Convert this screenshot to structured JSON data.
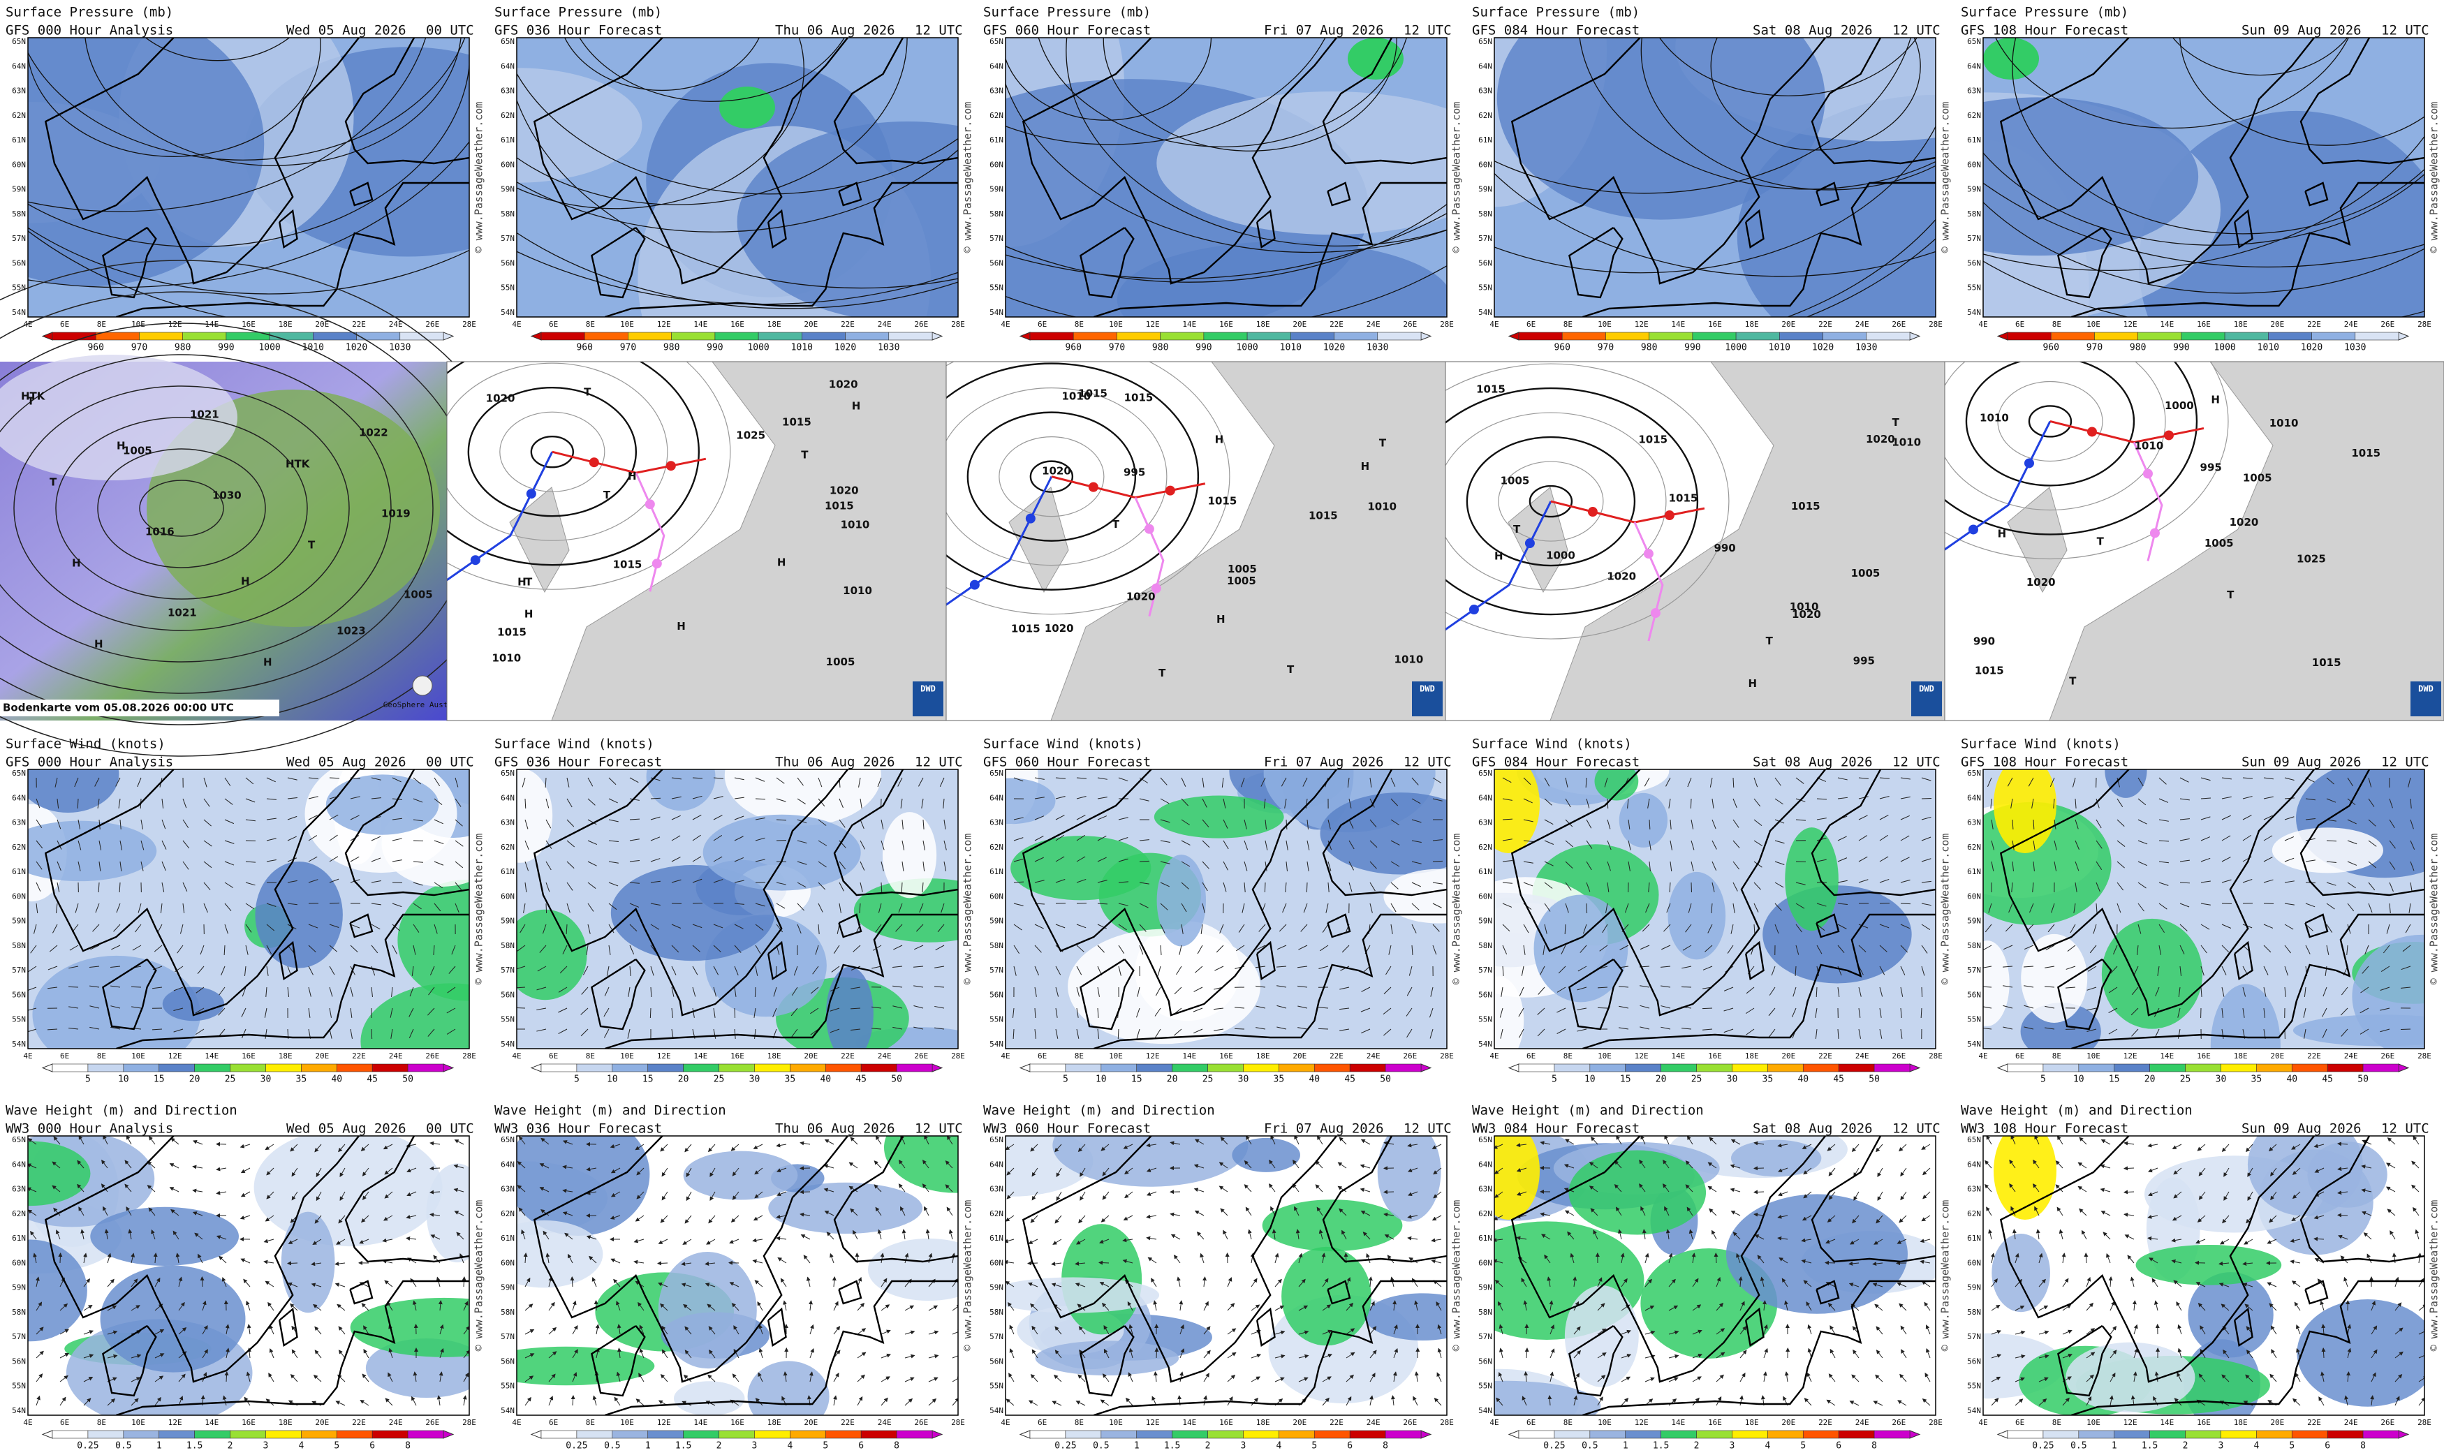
{
  "watermark": "© www.PassageWeather.com",
  "lat_labels": [
    "65N",
    "64N",
    "63N",
    "62N",
    "61N",
    "60N",
    "59N",
    "58N",
    "57N",
    "56N",
    "55N",
    "54N"
  ],
  "lon_labels": [
    "4E",
    "6E",
    "8E",
    "10E",
    "12E",
    "14E",
    "16E",
    "18E",
    "20E",
    "22E",
    "24E",
    "26E",
    "28E"
  ],
  "pressure_maps": {
    "title": "Surface Pressure (mb)",
    "panels": [
      {
        "model": "GFS 000 Hour Analysis",
        "date": "Wed 05 Aug 2026",
        "time": "00 UTC"
      },
      {
        "model": "GFS 036 Hour Forecast",
        "date": "Thu 06 Aug 2026",
        "time": "12 UTC"
      },
      {
        "model": "GFS 060 Hour Forecast",
        "date": "Fri 07 Aug 2026",
        "time": "12 UTC"
      },
      {
        "model": "GFS 084 Hour Forecast",
        "date": "Sat 08 Aug 2026",
        "time": "12 UTC"
      },
      {
        "model": "GFS 108 Hour Forecast",
        "date": "Sun 09 Aug 2026",
        "time": "12 UTC"
      }
    ],
    "colorbar": [
      "960",
      "970",
      "980",
      "990",
      "1000",
      "1010",
      "1020",
      "1030"
    ]
  },
  "analysis_maps": {
    "caption": "Bodenkarte vom 05.08.2026 00:00 UTC",
    "provider": "GeoSphere Austria",
    "dwd_logo": "DWD",
    "satellite_labels": [
      "HTK",
      "H",
      "1030",
      "T",
      "1005",
      "H",
      "1021",
      "HTK",
      "1019",
      "H",
      "1021",
      "H",
      "1022",
      "T",
      "1016",
      "H",
      "1023",
      "T",
      "1005"
    ],
    "panels": [
      {
        "labels": [
          "H",
          "1010",
          "T",
          "1015",
          "1015",
          "T",
          "1010",
          "H",
          "1020",
          "T",
          "1015",
          "H",
          "1025",
          "1020",
          "H",
          "T",
          "1010",
          "1005",
          "1015",
          "H",
          "1020",
          "H"
        ]
      },
      {
        "labels": [
          "1015",
          "1010",
          "T",
          "995",
          "1005",
          "T",
          "1010",
          "1015",
          "H",
          "1020",
          "T",
          "1015",
          "1020",
          "H",
          "1005",
          "1010",
          "1015",
          "H",
          "1020",
          "T",
          "1015"
        ]
      },
      {
        "labels": [
          "1015",
          "T",
          "1010",
          "1020",
          "T",
          "990",
          "995",
          "1000",
          "1005",
          "1015",
          "1020",
          "H",
          "1015",
          "1010",
          "H",
          "T",
          "1005",
          "1020",
          "1015"
        ]
      },
      {
        "labels": [
          "T",
          "990",
          "995",
          "1000",
          "1005",
          "1010",
          "1015",
          "T",
          "1020",
          "H",
          "1025",
          "1015",
          "T",
          "1010",
          "1005",
          "1020",
          "1010",
          "H",
          "1015"
        ]
      }
    ]
  },
  "wind_maps": {
    "title": "Surface Wind (knots)",
    "panels": [
      {
        "model": "GFS 000 Hour Analysis",
        "date": "Wed 05 Aug 2026",
        "time": "00 UTC"
      },
      {
        "model": "GFS 036 Hour Forecast",
        "date": "Thu 06 Aug 2026",
        "time": "12 UTC"
      },
      {
        "model": "GFS 060 Hour Forecast",
        "date": "Fri 07 Aug 2026",
        "time": "12 UTC"
      },
      {
        "model": "GFS 084 Hour Forecast",
        "date": "Sat 08 Aug 2026",
        "time": "12 UTC"
      },
      {
        "model": "GFS 108 Hour Forecast",
        "date": "Sun 09 Aug 2026",
        "time": "12 UTC"
      }
    ],
    "colorbar": [
      "5",
      "10",
      "15",
      "20",
      "25",
      "30",
      "35",
      "40",
      "45",
      "50"
    ]
  },
  "wave_maps": {
    "title": "Wave Height (m) and Direction",
    "panels": [
      {
        "model": "WW3 000 Hour Analysis",
        "date": "Wed 05 Aug 2026",
        "time": "00 UTC"
      },
      {
        "model": "WW3 036 Hour Forecast",
        "date": "Thu 06 Aug 2026",
        "time": "12 UTC"
      },
      {
        "model": "WW3 060 Hour Forecast",
        "date": "Fri 07 Aug 2026",
        "time": "12 UTC"
      },
      {
        "model": "WW3 084 Hour Forecast",
        "date": "Sat 08 Aug 2026",
        "time": "12 UTC"
      },
      {
        "model": "WW3 108 Hour Forecast",
        "date": "Sun 09 Aug 2026",
        "time": "12 UTC"
      }
    ],
    "colorbar": [
      "0.25",
      "0.5",
      "1",
      "1.5",
      "2",
      "3",
      "4",
      "5",
      "6",
      "8"
    ]
  }
}
